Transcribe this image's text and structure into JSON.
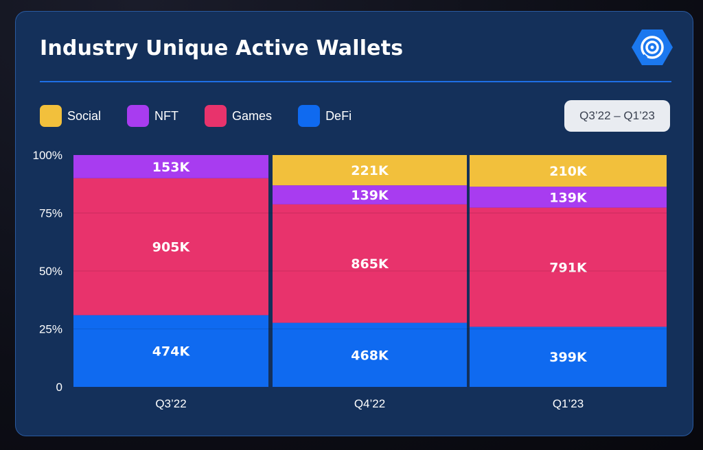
{
  "header": {
    "title": "Industry Unique Active Wallets"
  },
  "date_range": {
    "label": "Q3’22 – Q1’23"
  },
  "colors": {
    "Social": "#f2c03c",
    "NFT": "#a83cf0",
    "Games": "#e8336c",
    "DeFi": "#0f6af0",
    "card": "#14305a",
    "accent": "#1f6fe6"
  },
  "chart_data": {
    "type": "bar",
    "stacked": "percent",
    "categories": [
      "Q3’22",
      "Q4’22",
      "Q1’23"
    ],
    "series": [
      {
        "name": "DeFi",
        "values": [
          474,
          468,
          399
        ],
        "labels": [
          "474K",
          "468K",
          "399K"
        ]
      },
      {
        "name": "Games",
        "values": [
          905,
          865,
          791
        ],
        "labels": [
          "905K",
          "865K",
          "791K"
        ]
      },
      {
        "name": "NFT",
        "values": [
          153,
          139,
          139
        ],
        "labels": [
          "153K",
          "139K",
          "139K"
        ]
      },
      {
        "name": "Social",
        "values": [
          0,
          221,
          210
        ],
        "labels": [
          "",
          "221K",
          "210K"
        ]
      }
    ],
    "y_ticks": [
      "0",
      "25%",
      "50%",
      "75%",
      "100%"
    ],
    "ylim": [
      0,
      100
    ],
    "legend": [
      "Social",
      "NFT",
      "Games",
      "DeFi"
    ],
    "legend_position": "top-left",
    "grid": true
  }
}
